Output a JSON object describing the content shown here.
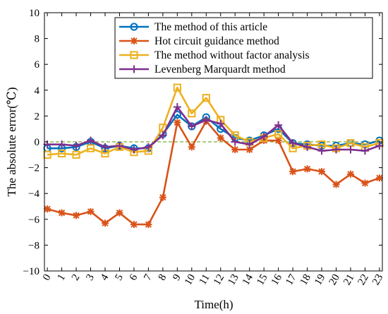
{
  "chart_data": {
    "type": "line",
    "title": "",
    "xlabel": "Time(h)",
    "ylabel": "The absolute error(℃)",
    "xlim": [
      -0.2,
      23.2
    ],
    "ylim": [
      -10,
      10
    ],
    "x_ticks": [
      0,
      1,
      2,
      3,
      4,
      5,
      6,
      7,
      8,
      9,
      10,
      11,
      12,
      13,
      14,
      15,
      16,
      17,
      18,
      19,
      20,
      21,
      22,
      23
    ],
    "y_ticks": [
      -10,
      -8,
      -6,
      -4,
      -2,
      0,
      2,
      4,
      6,
      8,
      10
    ],
    "x": [
      0,
      1,
      2,
      3,
      4,
      5,
      6,
      7,
      8,
      9,
      10,
      11,
      12,
      13,
      14,
      15,
      16,
      17,
      18,
      19,
      20,
      21,
      22,
      23
    ],
    "reference_line": {
      "y": 0,
      "color": "#77AC30",
      "style": "dashed"
    },
    "legend_position": "top-right",
    "series": [
      {
        "name": "The method of this article",
        "color": "#0072BD",
        "marker": "circle",
        "values": [
          -0.5,
          -0.5,
          -0.4,
          0.0,
          -0.5,
          -0.3,
          -0.5,
          -0.5,
          0.6,
          2.1,
          1.2,
          1.9,
          1.0,
          0.3,
          0.1,
          0.5,
          1.0,
          -0.1,
          -0.2,
          -0.3,
          -0.3,
          -0.1,
          -0.2,
          0.1
        ]
      },
      {
        "name": "Hot circuit guidance method",
        "color": "#D95319",
        "marker": "asterisk",
        "values": [
          -5.2,
          -5.5,
          -5.7,
          -5.4,
          -6.3,
          -5.5,
          -6.4,
          -6.4,
          -4.3,
          1.5,
          -0.4,
          1.6,
          0.3,
          -0.6,
          -0.6,
          0.1,
          0.1,
          -2.3,
          -2.1,
          -2.3,
          -3.3,
          -2.5,
          -3.2,
          -2.8
        ]
      },
      {
        "name": "The method without factor analysis",
        "color": "#EDB120",
        "marker": "square",
        "values": [
          -1.0,
          -0.9,
          -1.0,
          -0.5,
          -0.9,
          -0.4,
          -0.8,
          -0.7,
          1.1,
          4.2,
          2.2,
          3.4,
          1.7,
          0.5,
          0.0,
          0.3,
          0.6,
          -0.5,
          -0.3,
          -0.2,
          -0.5,
          -0.1,
          -0.4,
          -0.1
        ]
      },
      {
        "name": "Levenberg Marquardt method",
        "color": "#7E2F8E",
        "marker": "plus",
        "values": [
          -0.2,
          -0.2,
          -0.3,
          0.1,
          -0.4,
          -0.3,
          -0.6,
          -0.4,
          0.5,
          2.7,
          1.2,
          1.7,
          1.4,
          0.0,
          -0.2,
          0.4,
          1.3,
          -0.1,
          -0.4,
          -0.7,
          -0.6,
          -0.6,
          -0.7,
          -0.3
        ]
      }
    ]
  }
}
